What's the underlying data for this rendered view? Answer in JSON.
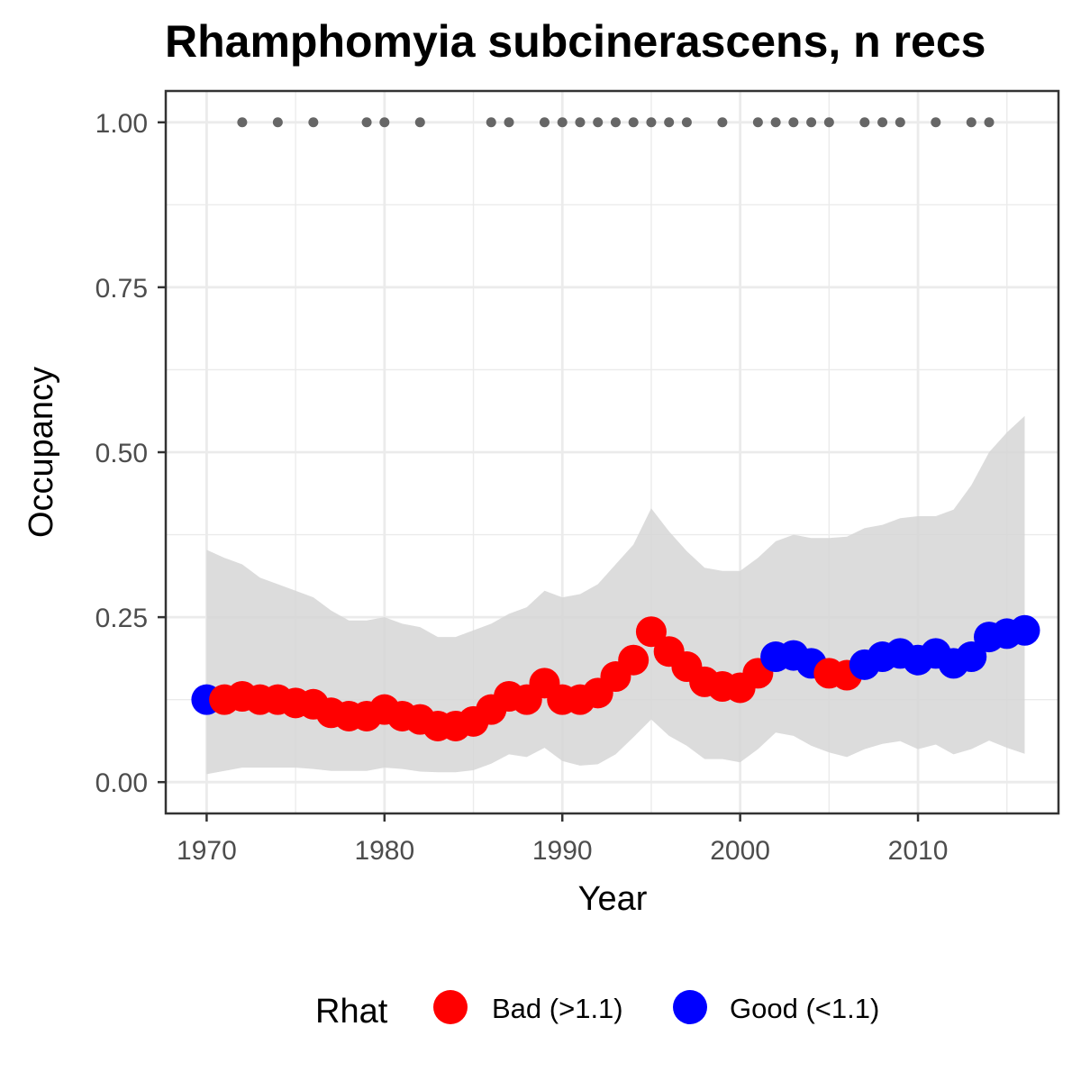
{
  "chart_data": {
    "type": "line",
    "title": "Rhamphomyia subcinerascens, n recs",
    "xlabel": "Year",
    "ylabel": "Occupancy",
    "xlim": [
      1967.7,
      2017.9
    ],
    "ylim": [
      -0.0475,
      1.0475
    ],
    "x_ticks": [
      1970,
      1980,
      1990,
      2000,
      2010
    ],
    "x_tick_labels": [
      "1970",
      "1980",
      "1990",
      "2000",
      "2010"
    ],
    "y_ticks": [
      0,
      0.25,
      0.5,
      0.75,
      1.0
    ],
    "y_tick_labels": [
      "0.00",
      "0.25",
      "0.50",
      "0.75",
      "1.00"
    ],
    "grid": true,
    "legend": {
      "title": "Rhat",
      "position": "bottom",
      "entries": [
        {
          "label": "Bad (>1.1)",
          "color": "#ff0000"
        },
        {
          "label": "Good (<1.1)",
          "color": "#0000ff"
        }
      ]
    },
    "colors": {
      "bad": "#ff0000",
      "good": "#0000ff",
      "ribbon": "#d6d6d6",
      "records": "#666666"
    },
    "series": [
      {
        "x": [
          1970,
          1971,
          1972,
          1973,
          1974,
          1975,
          1976,
          1977,
          1978,
          1979,
          1980,
          1981,
          1982,
          1983,
          1984,
          1985,
          1986,
          1987,
          1988,
          1989,
          1990,
          1991,
          1992,
          1993,
          1994,
          1995,
          1996,
          1997,
          1998,
          1999,
          2000,
          2001,
          2002,
          2003,
          2004,
          2005,
          2006,
          2007,
          2008,
          2009,
          2010,
          2011,
          2012,
          2013,
          2014,
          2015,
          2016
        ],
        "values": [
          0.125,
          0.125,
          0.13,
          0.125,
          0.125,
          0.12,
          0.118,
          0.105,
          0.1,
          0.1,
          0.11,
          0.1,
          0.095,
          0.085,
          0.085,
          0.092,
          0.11,
          0.13,
          0.125,
          0.15,
          0.125,
          0.125,
          0.135,
          0.16,
          0.185,
          0.228,
          0.198,
          0.175,
          0.152,
          0.145,
          0.143,
          0.165,
          0.19,
          0.192,
          0.18,
          0.165,
          0.162,
          0.178,
          0.19,
          0.195,
          0.185,
          0.195,
          0.18,
          0.19,
          0.22,
          0.225,
          0.23
        ],
        "rhat": [
          "good",
          "bad",
          "bad",
          "bad",
          "bad",
          "bad",
          "bad",
          "bad",
          "bad",
          "bad",
          "bad",
          "bad",
          "bad",
          "bad",
          "bad",
          "bad",
          "bad",
          "bad",
          "bad",
          "bad",
          "bad",
          "bad",
          "bad",
          "bad",
          "bad",
          "bad",
          "bad",
          "bad",
          "bad",
          "bad",
          "bad",
          "bad",
          "good",
          "good",
          "good",
          "bad",
          "bad",
          "good",
          "good",
          "good",
          "good",
          "good",
          "good",
          "good",
          "good",
          "good",
          "good"
        ],
        "upper": [
          0.352,
          0.34,
          0.33,
          0.31,
          0.3,
          0.29,
          0.28,
          0.26,
          0.245,
          0.245,
          0.25,
          0.24,
          0.235,
          0.22,
          0.22,
          0.23,
          0.24,
          0.255,
          0.265,
          0.29,
          0.28,
          0.285,
          0.3,
          0.33,
          0.36,
          0.415,
          0.38,
          0.35,
          0.325,
          0.32,
          0.32,
          0.34,
          0.365,
          0.375,
          0.37,
          0.37,
          0.372,
          0.385,
          0.39,
          0.4,
          0.403,
          0.403,
          0.413,
          0.45,
          0.5,
          0.53,
          0.555
        ],
        "lower": [
          0.012,
          0.017,
          0.022,
          0.022,
          0.022,
          0.022,
          0.02,
          0.017,
          0.017,
          0.017,
          0.022,
          0.02,
          0.016,
          0.015,
          0.015,
          0.018,
          0.028,
          0.042,
          0.038,
          0.052,
          0.032,
          0.025,
          0.027,
          0.042,
          0.068,
          0.095,
          0.07,
          0.055,
          0.035,
          0.035,
          0.03,
          0.05,
          0.075,
          0.07,
          0.055,
          0.045,
          0.038,
          0.05,
          0.058,
          0.062,
          0.05,
          0.057,
          0.042,
          0.05,
          0.063,
          0.052,
          0.043
        ]
      }
    ],
    "records": {
      "y": 1.0,
      "x": [
        1972,
        1974,
        1976,
        1979,
        1980,
        1982,
        1986,
        1987,
        1989,
        1990,
        1991,
        1992,
        1993,
        1994,
        1995,
        1996,
        1997,
        1999,
        2001,
        2002,
        2003,
        2004,
        2005,
        2007,
        2008,
        2009,
        2011,
        2013,
        2014
      ]
    }
  }
}
